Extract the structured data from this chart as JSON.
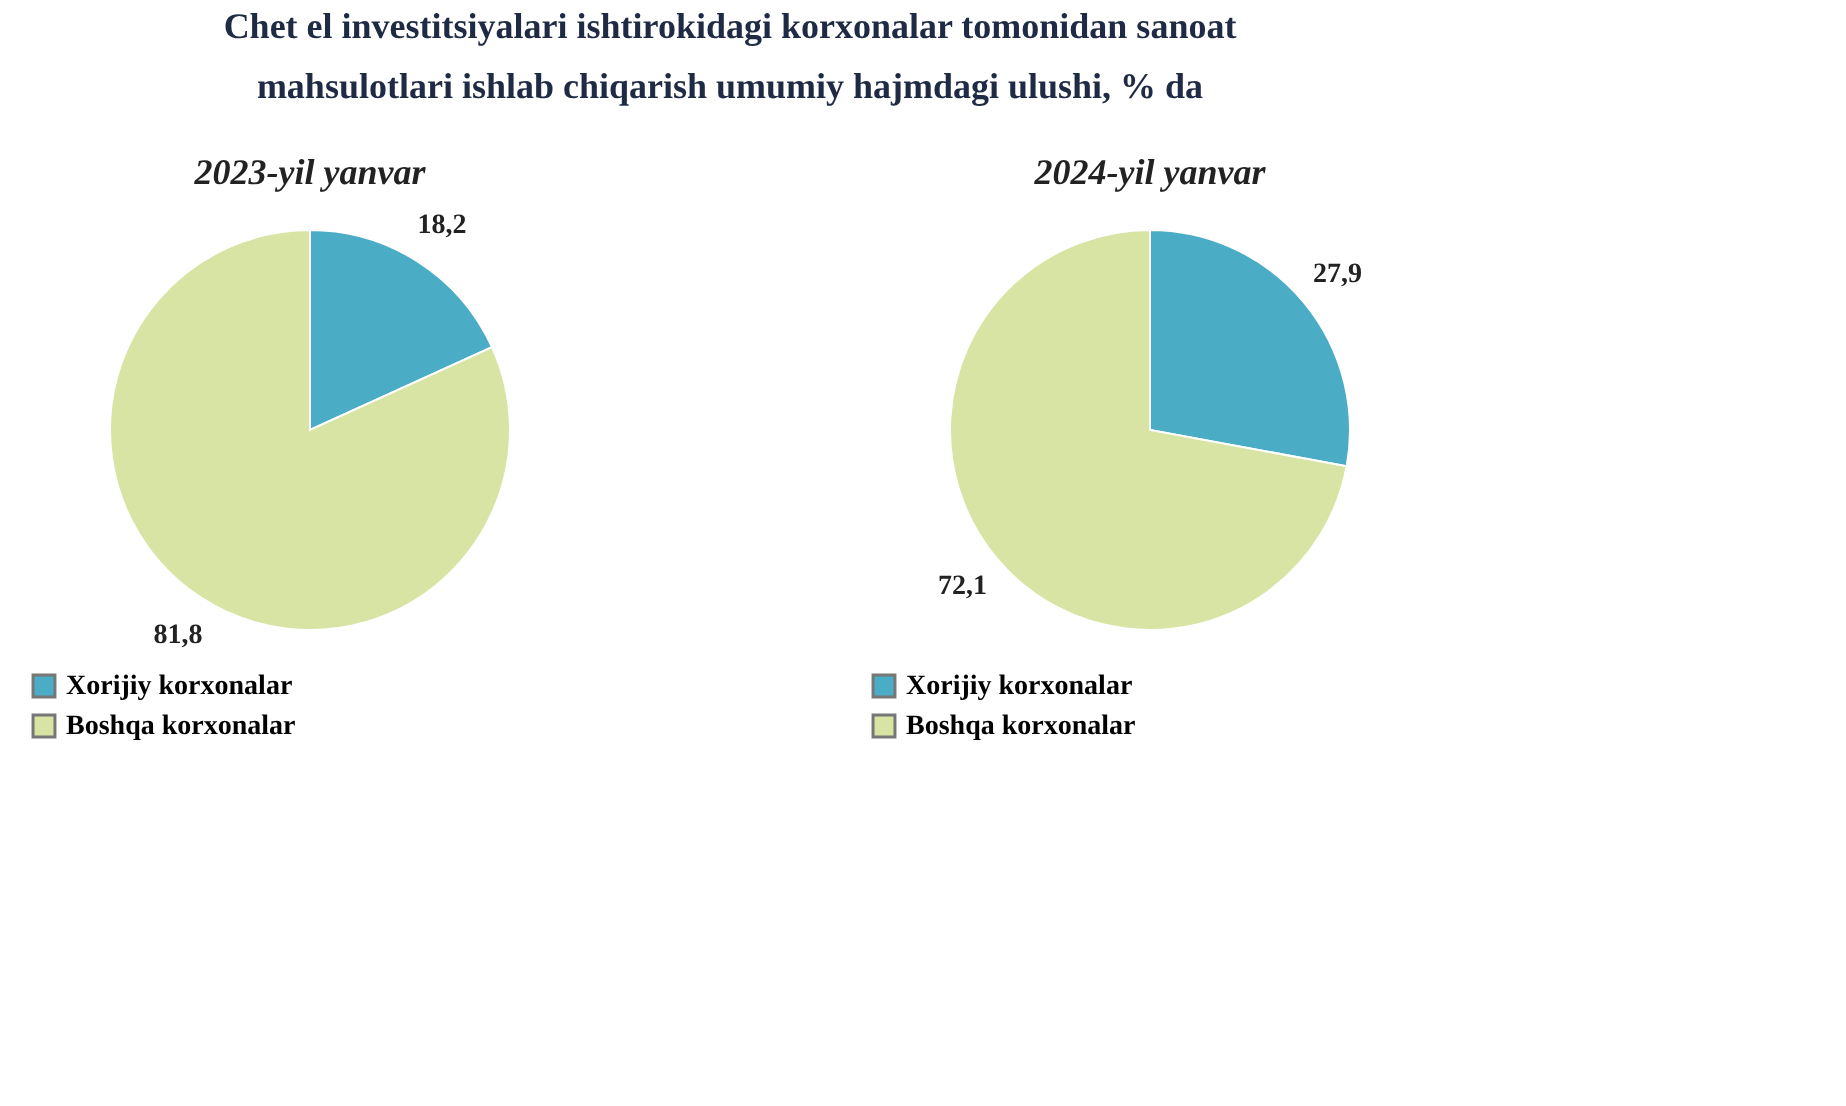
{
  "chart_data": [
    {
      "type": "pie",
      "title": "Chet el investitsiyalari ishtirokidagi korxonalar tomonidan sanoat mahsulotlari ishlab chiqarish umumiy hajmdagi ulushi, % da",
      "subtitle": "2023-yil yanvar",
      "categories": [
        "Xorijiy korxonalar",
        "Boshqa korxonalar"
      ],
      "values": [
        18.2,
        81.8
      ],
      "colors": [
        "#4bacc6",
        "#d7e4a4"
      ],
      "value_labels": [
        "18,2",
        "81,8"
      ],
      "legend": "bottom left"
    },
    {
      "type": "pie",
      "subtitle": "2024-yil yanvar",
      "categories": [
        "Xorijiy korxonalar",
        "Boshqa korxonalar"
      ],
      "values": [
        27.9,
        72.1
      ],
      "colors": [
        "#4bacc6",
        "#d7e4a4"
      ],
      "value_labels": [
        "27,9",
        "72,1"
      ],
      "legend": "bottom left"
    }
  ]
}
